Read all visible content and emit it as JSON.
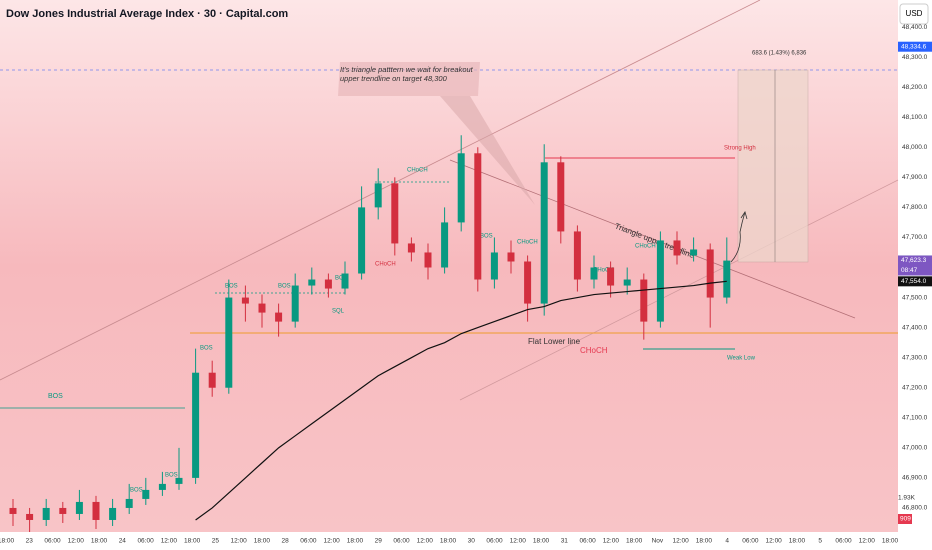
{
  "chart_data": {
    "type": "candlestick",
    "title": "Dow Jones Industrial Average Index · 30 · Capital.com",
    "currency": "USD",
    "up_color": "#089981",
    "down_color": "#d32f3f",
    "ma_color": "#111111",
    "ylim": [
      46720,
      48490
    ],
    "yticks": [
      {
        "value": 48400,
        "label": "48,400.0"
      },
      {
        "value": 48300,
        "label": "48,300.0"
      },
      {
        "value": 48200,
        "label": "48,200.0"
      },
      {
        "value": 48100,
        "label": "48,100.0"
      },
      {
        "value": 48000,
        "label": "48,000.0"
      },
      {
        "value": 47900,
        "label": "47,900.0"
      },
      {
        "value": 47800,
        "label": "47,800.0"
      },
      {
        "value": 47700,
        "label": "47,700.0"
      },
      {
        "value": 47600,
        "label": "47,600.0"
      },
      {
        "value": 47500,
        "label": "47,500.0"
      },
      {
        "value": 47400,
        "label": "47,400.0"
      },
      {
        "value": 47300,
        "label": "47,300.0"
      },
      {
        "value": 47200,
        "label": "47,200.0"
      },
      {
        "value": 47100,
        "label": "47,100.0"
      },
      {
        "value": 47000,
        "label": "47,000.0"
      },
      {
        "value": 46900,
        "label": "46,900.0"
      },
      {
        "value": 46800,
        "label": "46,800.0"
      }
    ],
    "time_labels": [
      "18:00",
      "23",
      "06:00",
      "12:00",
      "18:00",
      "24",
      "06:00",
      "12:00",
      "18:00",
      "25",
      "12:00",
      "18:00",
      "28",
      "06:00",
      "12:00",
      "18:00",
      "29",
      "06:00",
      "12:00",
      "18:00",
      "30",
      "06:00",
      "12:00",
      "18:00",
      "31",
      "06:00",
      "12:00",
      "18:00",
      "Nov",
      "12:00",
      "18:00",
      "4",
      "06:00",
      "12:00",
      "18:00",
      "5",
      "06:00",
      "12:00",
      "18:00"
    ],
    "open": [
      46800,
      46780,
      46760,
      46800,
      46780,
      46820,
      46760,
      46800,
      46830,
      46860,
      46880,
      46900,
      47250,
      47200,
      47500,
      47480,
      47450,
      47420,
      47540,
      47560,
      47530,
      47580,
      47800,
      47880,
      47680,
      47650,
      47600,
      47750,
      47980,
      47560,
      47650,
      47620,
      47480,
      47950,
      47720,
      47560,
      47600,
      47540,
      47560,
      47420,
      47690,
      47640,
      47660,
      47500
    ],
    "high": [
      46830,
      46800,
      46830,
      46820,
      46860,
      46840,
      46830,
      46880,
      46900,
      46920,
      47000,
      47330,
      47290,
      47560,
      47540,
      47510,
      47480,
      47580,
      47600,
      47580,
      47620,
      47870,
      47930,
      47900,
      47700,
      47680,
      47800,
      48040,
      48000,
      47700,
      47690,
      47640,
      48010,
      47970,
      47740,
      47640,
      47620,
      47600,
      47580,
      47720,
      47720,
      47700,
      47680,
      47700
    ],
    "low": [
      46740,
      46720,
      46740,
      46750,
      46760,
      46730,
      46740,
      46780,
      46810,
      46840,
      46860,
      46880,
      47170,
      47180,
      47420,
      47400,
      47370,
      47400,
      47510,
      47500,
      47510,
      47560,
      47760,
      47640,
      47620,
      47560,
      47580,
      47720,
      47520,
      47530,
      47580,
      47420,
      47440,
      47680,
      47520,
      47530,
      47500,
      47510,
      47360,
      47400,
      47610,
      47620,
      47400,
      47480
    ],
    "close": [
      46780,
      46760,
      46800,
      46780,
      46820,
      46760,
      46800,
      46830,
      46860,
      46880,
      46900,
      47250,
      47200,
      47500,
      47480,
      47450,
      47420,
      47540,
      47560,
      47530,
      47580,
      47800,
      47880,
      47680,
      47650,
      47600,
      47750,
      47980,
      47560,
      47650,
      47620,
      47480,
      47950,
      47720,
      47560,
      47600,
      47540,
      47560,
      47420,
      47690,
      47640,
      47660,
      47500,
      47623
    ],
    "ma": [
      null,
      null,
      null,
      null,
      null,
      null,
      null,
      null,
      null,
      null,
      null,
      46760,
      46800,
      46850,
      46900,
      46950,
      47000,
      47040,
      47080,
      47120,
      47160,
      47200,
      47240,
      47270,
      47300,
      47330,
      47350,
      47380,
      47400,
      47420,
      47440,
      47460,
      47470,
      47490,
      47500,
      47510,
      47515,
      47520,
      47525,
      47530,
      47535,
      47540,
      47548,
      47554
    ],
    "price_tags": [
      {
        "value": 48334.6,
        "label": "48,334.6",
        "color": "#2962ff"
      },
      {
        "value": 47623.4,
        "label": "47,623.4",
        "color": "#089981"
      },
      {
        "value": 47623.3,
        "label": "47,623.3",
        "color": "#7e57c2"
      },
      {
        "value": 47554.0,
        "label": "47,554.0",
        "color": "#111111"
      }
    ],
    "countdown": "08:47",
    "volume_labels": [
      "1.93K",
      "909"
    ],
    "note": "It's triangle patttern we wait for breakout upper trendline on target 48,300",
    "annotations": [
      "Triangle upper trendline",
      "Flat Lower line",
      "CHoCH",
      "Strong High",
      "Weak Low",
      "683.6 (1.43%) 6,836"
    ],
    "markers": [
      "BOS",
      "BOS",
      "BOS",
      "BOS",
      "BOS",
      "BOS",
      "CHoCH",
      "CHoCH",
      "CHoCH",
      "CHoCH",
      "CHoCH",
      "BOS",
      "SQL",
      "BOS"
    ]
  }
}
